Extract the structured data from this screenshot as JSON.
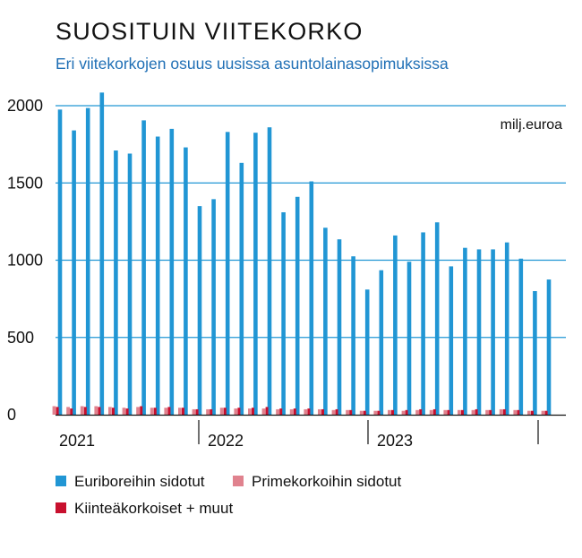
{
  "title": "SUOSITUIN VIITEKORKO",
  "subtitle": "Eri viitekorkojen osuus uusissa asuntolainasopimuksissa",
  "chart_data": {
    "type": "bar",
    "unit": "milj.euroa",
    "ylim": [
      0,
      2000
    ],
    "yticks": [
      0,
      500,
      1000,
      1500,
      2000
    ],
    "grid": true,
    "legend_position": "bottom",
    "year_labels": [
      "2021",
      "2022",
      "2023"
    ],
    "series": [
      {
        "name": "Euriboreihin sidotut",
        "color": "#2196d4",
        "values": [
          1975,
          1840,
          1985,
          2085,
          1710,
          1690,
          1905,
          1800,
          1850,
          1730,
          1350,
          1395,
          1830,
          1630,
          1825,
          1860,
          1310,
          1410,
          1510,
          1210,
          1135,
          1025,
          810,
          935,
          1160,
          990,
          1180,
          1245,
          960,
          1080,
          1070,
          1070,
          1115,
          1010,
          800,
          875
        ]
      },
      {
        "name": "Primekorkoihin sidotut",
        "color": "#e0828e",
        "values": [
          55,
          50,
          55,
          55,
          50,
          45,
          50,
          45,
          45,
          45,
          35,
          35,
          45,
          40,
          40,
          40,
          35,
          35,
          35,
          35,
          30,
          30,
          25,
          25,
          30,
          25,
          30,
          30,
          30,
          30,
          30,
          30,
          35,
          30,
          25,
          25
        ]
      },
      {
        "name": "Kiinteäkorkoiset + muut",
        "color": "#c8102e",
        "values": [
          50,
          40,
          50,
          50,
          45,
          40,
          55,
          45,
          50,
          45,
          35,
          35,
          45,
          45,
          45,
          50,
          40,
          40,
          40,
          35,
          35,
          30,
          25,
          25,
          30,
          30,
          35,
          35,
          30,
          30,
          35,
          30,
          35,
          30,
          25,
          25
        ]
      }
    ]
  }
}
